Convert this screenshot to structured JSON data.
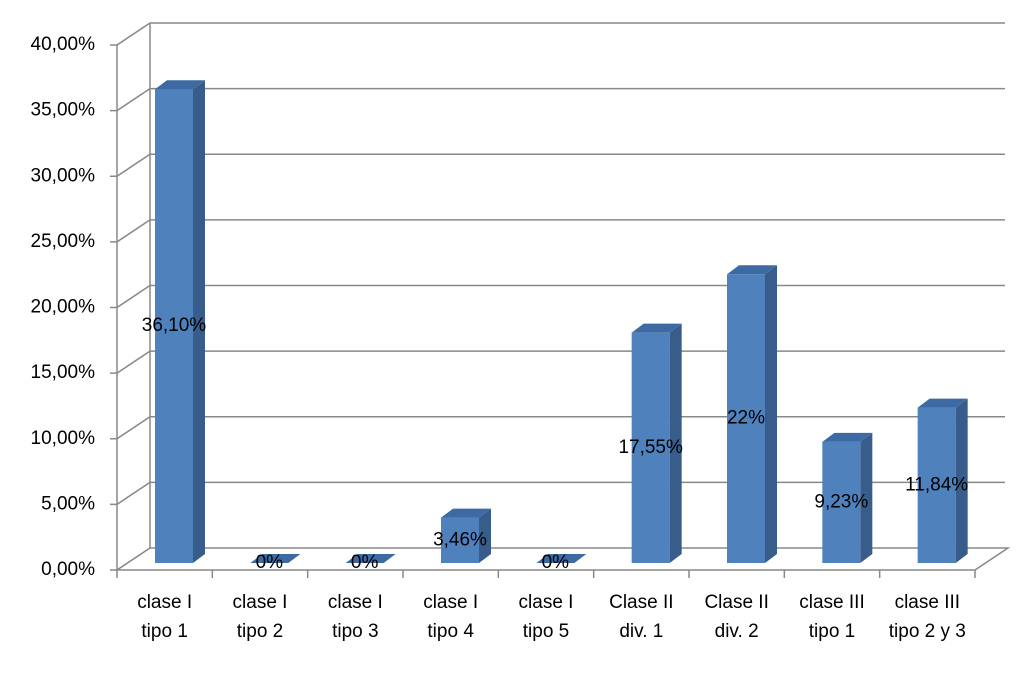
{
  "chart_data": {
    "type": "bar3d",
    "categories": [
      "clase I tipo 1",
      "clase I tipo 2",
      "clase I tipo 3",
      "clase I tipo 4",
      "clase I tipo 5",
      "Clase II div. 1",
      "Clase II div. 2",
      "clase III tipo 1",
      "clase III tipo 2 y 3"
    ],
    "values": [
      36.1,
      0,
      0,
      3.46,
      0,
      17.55,
      22,
      9.23,
      11.84
    ],
    "value_labels": [
      "36,10%",
      "0%",
      "0%",
      "3,46%",
      "0%",
      "17,55%",
      "22%",
      "9,23%",
      "11,84%"
    ],
    "color": "#4f81bd",
    "ylim": [
      0,
      40
    ],
    "yticks": [
      {
        "value": 0,
        "label": "0,00%"
      },
      {
        "value": 5,
        "label": "5,00%"
      },
      {
        "value": 10,
        "label": "10,00%"
      },
      {
        "value": 15,
        "label": "15,00%"
      },
      {
        "value": 20,
        "label": "20,00%"
      },
      {
        "value": 25,
        "label": "25,00%"
      },
      {
        "value": 30,
        "label": "30,00%"
      },
      {
        "value": 35,
        "label": "35,00%"
      },
      {
        "value": 40,
        "label": "40,00%"
      }
    ],
    "grid": true
  }
}
